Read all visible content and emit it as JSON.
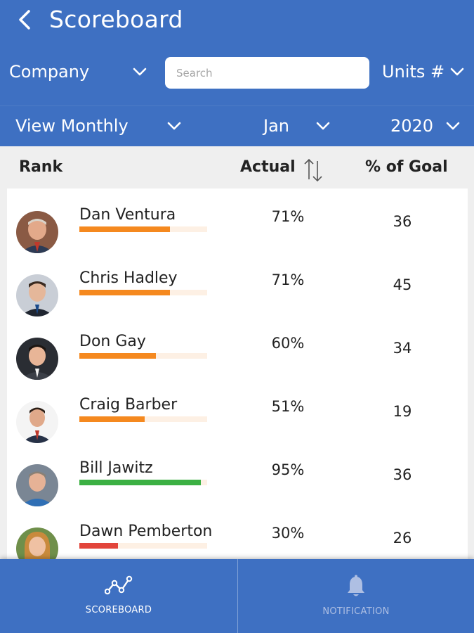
{
  "header": {
    "title": "Scoreboard",
    "back_icon": "chevron-left-icon"
  },
  "filters": {
    "scope": "Company",
    "search_placeholder": "Search",
    "metric": "Units #",
    "period": "View Monthly",
    "month": "Jan",
    "year": "2020"
  },
  "columns": {
    "rank": "Rank",
    "actual": "Actual",
    "goal": "% of Goal",
    "sort_icon": "sort-arrows-icon"
  },
  "rows": [
    {
      "name": "Dan Ventura",
      "actual": "71%",
      "goal": "36",
      "progress": 0.71,
      "bar_color": "#f5891f"
    },
    {
      "name": "Chris Hadley",
      "actual": "71%",
      "goal": "45",
      "progress": 0.71,
      "bar_color": "#f5891f"
    },
    {
      "name": "Don Gay",
      "actual": "60%",
      "goal": "34",
      "progress": 0.6,
      "bar_color": "#f5891f"
    },
    {
      "name": "Craig Barber",
      "actual": "51%",
      "goal": "19",
      "progress": 0.51,
      "bar_color": "#f5891f"
    },
    {
      "name": "Bill Jawitz",
      "actual": "95%",
      "goal": "36",
      "progress": 0.95,
      "bar_color": "#3cb043"
    },
    {
      "name": "Dawn Pemberton",
      "actual": "30%",
      "goal": "26",
      "progress": 0.3,
      "bar_color": "#e2453b"
    }
  ],
  "tabs": {
    "scoreboard": "SCOREBOARD",
    "notification": "NOTIFICATION"
  },
  "colors": {
    "brand_blue": "#3e70c2",
    "orange": "#f5891f",
    "green": "#3cb043",
    "red": "#e2453b"
  }
}
